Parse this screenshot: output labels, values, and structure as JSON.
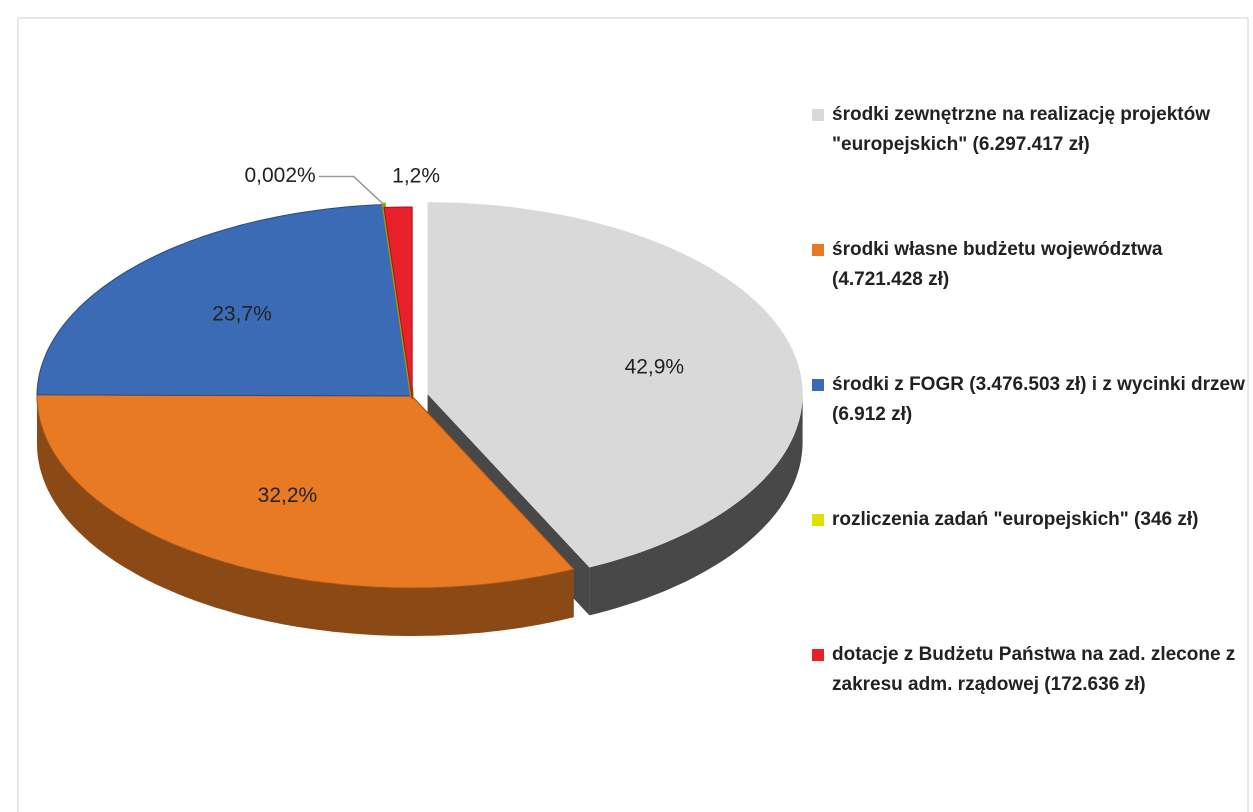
{
  "chart_data": {
    "type": "pie3d",
    "series": [
      {
        "name": "środki zewnętrzne na realizację projektów \"europejskich\" (6.297.417 zł)",
        "color": "#d9d9d9",
        "values": [
          42.9
        ],
        "value_labels": [
          "42,9%"
        ]
      },
      {
        "name": "środki własne budżetu województwa (4.721.428 zł)",
        "color": "#e87a24",
        "values": [
          32.2
        ],
        "value_labels": [
          "32,2%"
        ]
      },
      {
        "name": "środki z FOGR (3.476.503 zł) i z wycinki drzew (6.912 zł)",
        "color": "#3c6bb6",
        "values": [
          23.7
        ],
        "value_labels": [
          "23,7%"
        ]
      },
      {
        "name": "rozliczenia zadań \"europejskich\" (346 zł)",
        "color": "#e0e000",
        "values": [
          0.002
        ],
        "value_labels": [
          "0,002%"
        ]
      },
      {
        "name": "dotacje z Budżetu Państwa na zad. zlecone z zakresu adm. rządowej (172.636 zł)",
        "color": "#e8202a",
        "values": [
          1.2
        ],
        "value_labels": [
          "1,2%"
        ]
      }
    ]
  }
}
